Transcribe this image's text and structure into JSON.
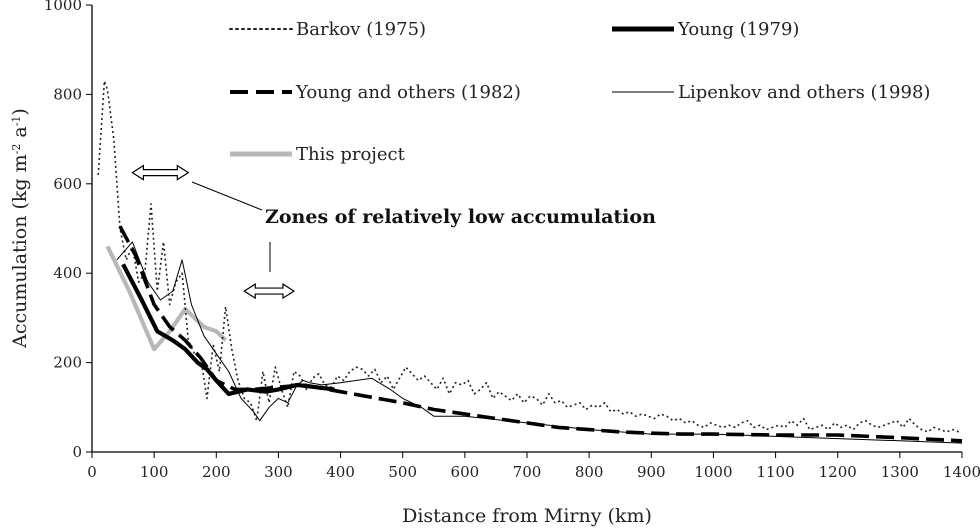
{
  "chart_data": {
    "type": "line",
    "xlabel": "Distance from Mirny (km)",
    "ylabel_main": "Accumulation (kg m",
    "ylabel_sup1": "-2",
    "ylabel_mid": " a",
    "ylabel_sup2": "-1",
    "ylabel_end": ")",
    "xlim": [
      0,
      1400
    ],
    "ylim": [
      0,
      1000
    ],
    "xticks": [
      0,
      100,
      200,
      300,
      400,
      500,
      600,
      700,
      800,
      900,
      1000,
      1100,
      1200,
      1300,
      1400
    ],
    "yticks": [
      0,
      200,
      400,
      600,
      800,
      1000
    ],
    "grid": false,
    "legend_position": "top-right",
    "series": [
      {
        "name": "Barkov (1975)",
        "style": "dotted",
        "color": "#222222",
        "x": [
          10,
          20,
          25,
          35,
          45,
          55,
          65,
          75,
          85,
          95,
          105,
          115,
          125,
          135,
          145,
          155,
          165,
          175,
          185,
          195,
          205,
          215,
          225,
          235,
          245,
          255,
          265,
          275,
          285,
          295,
          305,
          315,
          325,
          335,
          345,
          355,
          365,
          375,
          385,
          395,
          405,
          415,
          425,
          435,
          445,
          455,
          465,
          475,
          485,
          495,
          505,
          515,
          525,
          535,
          545,
          555,
          565,
          575,
          585,
          595,
          605,
          615,
          625,
          635,
          645,
          655,
          665,
          675,
          685,
          695,
          705,
          715,
          725,
          735,
          745,
          755,
          765,
          775,
          785,
          795,
          805,
          815,
          825,
          835,
          845,
          855,
          865,
          875,
          885,
          895,
          905,
          915,
          925,
          935,
          945,
          955,
          965,
          975,
          985,
          995,
          1005,
          1015,
          1025,
          1035,
          1045,
          1055,
          1065,
          1075,
          1085,
          1095,
          1105,
          1115,
          1125,
          1135,
          1145,
          1155,
          1165,
          1175,
          1185,
          1195,
          1205,
          1215,
          1225,
          1235,
          1245,
          1255,
          1265,
          1275,
          1285,
          1295,
          1305,
          1315,
          1325,
          1335,
          1345,
          1355,
          1365,
          1375,
          1385,
          1395
        ],
        "values": [
          620,
          830,
          810,
          700,
          500,
          430,
          460,
          380,
          400,
          555,
          360,
          470,
          330,
          380,
          400,
          250,
          220,
          210,
          120,
          240,
          180,
          325,
          230,
          160,
          120,
          110,
          70,
          180,
          110,
          190,
          140,
          100,
          180,
          170,
          140,
          165,
          175,
          150,
          145,
          170,
          160,
          180,
          190,
          185,
          170,
          185,
          155,
          170,
          140,
          165,
          190,
          175,
          160,
          170,
          155,
          140,
          165,
          130,
          155,
          150,
          160,
          130,
          140,
          155,
          120,
          135,
          125,
          115,
          130,
          110,
          125,
          120,
          105,
          130,
          110,
          115,
          100,
          105,
          110,
          95,
          105,
          100,
          110,
          90,
          95,
          85,
          90,
          80,
          85,
          80,
          75,
          85,
          80,
          70,
          75,
          65,
          70,
          60,
          55,
          65,
          60,
          55,
          60,
          55,
          65,
          70,
          55,
          60,
          50,
          55,
          60,
          55,
          70,
          60,
          75,
          50,
          55,
          60,
          50,
          65,
          55,
          60,
          50,
          65,
          70,
          60,
          55,
          60,
          65,
          70,
          55,
          75,
          60,
          50,
          45,
          55,
          50,
          45,
          50,
          45
        ]
      },
      {
        "name": "Young (1979)",
        "style": "thick",
        "color": "#000000",
        "x": [
          50,
          80,
          105,
          130,
          150,
          170,
          185,
          200,
          220,
          250,
          280,
          300,
          330,
          360,
          390
        ],
        "values": [
          420,
          340,
          270,
          250,
          230,
          200,
          185,
          160,
          130,
          140,
          135,
          140,
          150,
          145,
          140
        ]
      },
      {
        "name": "Young and others (1982)",
        "style": "dashed",
        "color": "#000000",
        "x": [
          45,
          70,
          100,
          125,
          150,
          175,
          200,
          230,
          260,
          300,
          340,
          400,
          460,
          500,
          550,
          600,
          650,
          700,
          750,
          800,
          850,
          900,
          950,
          1000,
          1100,
          1200,
          1300,
          1400
        ],
        "values": [
          505,
          440,
          330,
          280,
          250,
          210,
          160,
          140,
          140,
          145,
          150,
          135,
          120,
          110,
          95,
          85,
          75,
          65,
          55,
          50,
          45,
          42,
          40,
          40,
          38,
          38,
          32,
          25
        ]
      },
      {
        "name": "Lipenkov and others (1998)",
        "style": "thin",
        "color": "#000000",
        "x": [
          40,
          65,
          90,
          110,
          130,
          145,
          160,
          180,
          200,
          220,
          240,
          260,
          270,
          285,
          300,
          315,
          330,
          340,
          350,
          370,
          400,
          450,
          480,
          500,
          530,
          550,
          600,
          700,
          800,
          900,
          1000,
          1100,
          1200,
          1300,
          1400
        ],
        "values": [
          430,
          470,
          380,
          340,
          360,
          430,
          330,
          260,
          220,
          180,
          120,
          90,
          70,
          100,
          120,
          110,
          150,
          160,
          155,
          150,
          155,
          165,
          140,
          120,
          100,
          80,
          80,
          65,
          50,
          40,
          40,
          35,
          30,
          25,
          20
        ]
      },
      {
        "name": "This project",
        "style": "gray",
        "color": "#b8b8b8",
        "x": [
          25,
          60,
          100,
          125,
          150,
          180,
          200,
          215
        ],
        "values": [
          460,
          360,
          230,
          270,
          320,
          280,
          270,
          250
        ]
      }
    ],
    "annotation": "Zones of relatively low accumulation",
    "zones": [
      {
        "x_from": 65,
        "x_to": 155,
        "y": 625
      },
      {
        "x_from": 245,
        "x_to": 325,
        "y": 360
      }
    ]
  }
}
